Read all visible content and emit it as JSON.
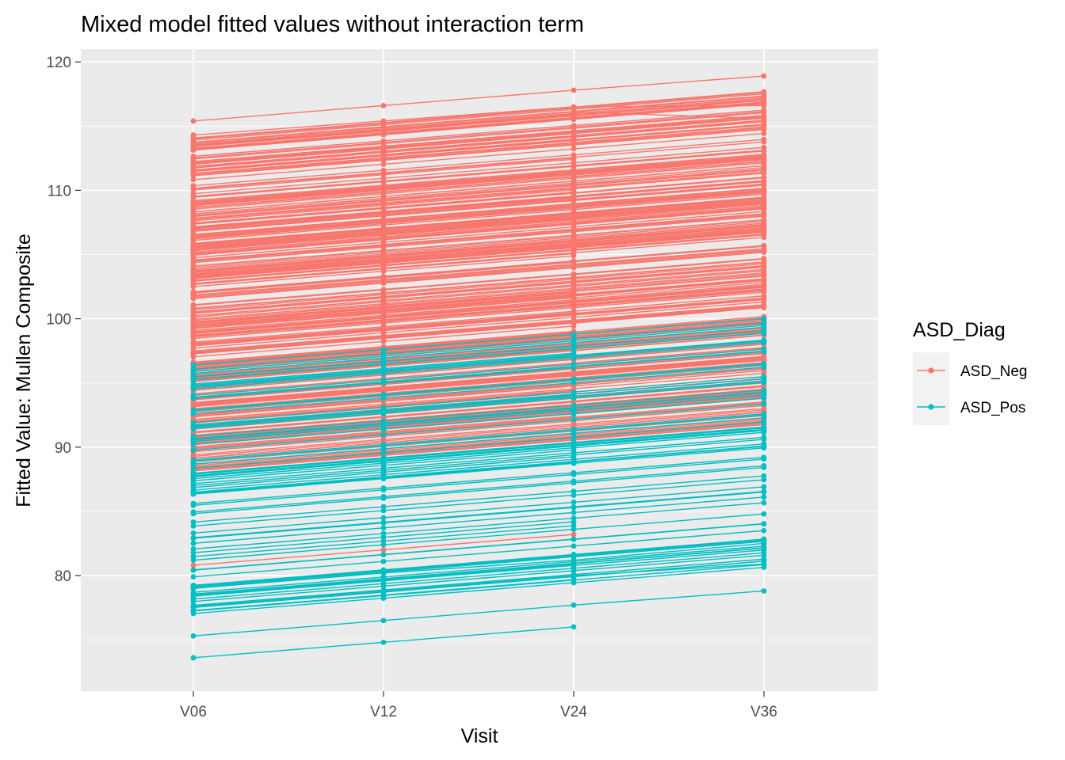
{
  "chart_data": {
    "type": "line",
    "title": "Mixed model fitted values without interaction term",
    "xlabel": "Visit",
    "ylabel": "Fitted Value: Mullen Composite",
    "categories": [
      "V06",
      "V12",
      "V24",
      "V36"
    ],
    "ylim": [
      71,
      121
    ],
    "yticks": [
      80,
      90,
      100,
      110,
      120
    ],
    "grid": true,
    "legend": {
      "title": "ASD_Diag",
      "placement": "right",
      "entries": [
        {
          "name": "ASD_Neg",
          "color": "#F8766D"
        },
        {
          "name": "ASD_Pos",
          "color": "#00BFC4"
        }
      ]
    },
    "visit_offsets": [
      0,
      1.2,
      2.4,
      3.6
    ],
    "series": [
      {
        "name": "ASD_Neg",
        "color": "#F8766D",
        "subject_count": 320,
        "v06_range": [
          88.0,
          114.2
        ],
        "extremes_v06": [
          115.4,
          80.8
        ],
        "sample_subjects": [
          {
            "values": [
              115.4,
              116.6,
              117.8,
              118.9
            ]
          },
          {
            "values": [
              114.3,
              115.4,
              116.5,
              116.6
            ]
          },
          {
            "values": [
              113.7,
              114.9,
              116.1,
              115.6
            ]
          },
          {
            "values": [
              80.8,
              82.0,
              83.2,
              null
            ]
          }
        ]
      },
      {
        "name": "ASD_Pos",
        "color": "#00BFC4",
        "subject_count": 90,
        "v06_range": [
          77.0,
          97.0
        ],
        "extremes_v06": [
          73.6,
          75.3
        ],
        "sample_subjects": [
          {
            "values": [
              73.6,
              74.8,
              76.0,
              null
            ]
          },
          {
            "values": [
              75.3,
              76.5,
              77.7,
              78.8
            ]
          },
          {
            "values": [
              77.6,
              78.8,
              80.0,
              80.9
            ]
          },
          {
            "values": [
              79.0,
              80.2,
              81.2,
              82.5
            ]
          }
        ]
      }
    ]
  }
}
